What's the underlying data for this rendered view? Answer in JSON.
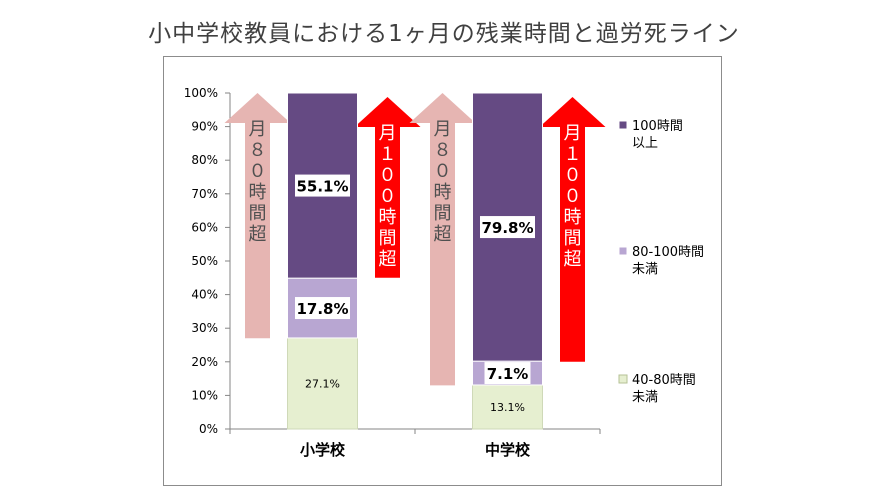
{
  "title": "小中学校教員における1ヶ月の残業時間と過労死ライン",
  "chart_data": {
    "type": "bar",
    "stacked": true,
    "categories": [
      "小学校",
      "中学校"
    ],
    "ylim": [
      0,
      100
    ],
    "yticks": [
      "0%",
      "10%",
      "20%",
      "30%",
      "40%",
      "50%",
      "60%",
      "70%",
      "80%",
      "90%",
      "100%"
    ],
    "grid": false,
    "legend_position": "right",
    "series": [
      {
        "name": "40-80時間未満",
        "name_lines": [
          "40-80時間",
          "未満"
        ],
        "values": [
          27.1,
          13.1
        ],
        "labels": [
          "27.1%",
          "13.1%"
        ],
        "color": "#e6efd0",
        "bold": false
      },
      {
        "name": "80-100時間未満",
        "name_lines": [
          "80-100時間",
          "未満"
        ],
        "values": [
          17.8,
          7.1
        ],
        "labels": [
          "17.8%",
          "7.1%"
        ],
        "color": "#b8a6d2",
        "bold": true
      },
      {
        "name": "100時間以上",
        "name_lines": [
          "100時間",
          "以上"
        ],
        "values": [
          55.1,
          79.8
        ],
        "labels": [
          "55.1%",
          "79.8%"
        ],
        "color": "#654a83",
        "bold": true
      }
    ],
    "annotations": [
      {
        "text": "月８０時間超",
        "category": 0,
        "from": 27,
        "color": "#e6b5b2",
        "text_color": "#505050",
        "side": "left"
      },
      {
        "text": "月１００時間超",
        "category": 0,
        "from": 45,
        "color": "#ff0000",
        "text_color": "#ffffff",
        "side": "right"
      },
      {
        "text": "月８０時間超",
        "category": 1,
        "from": 13,
        "color": "#e6b5b2",
        "text_color": "#505050",
        "side": "left"
      },
      {
        "text": "月１００時間超",
        "category": 1,
        "from": 20,
        "color": "#ff0000",
        "text_color": "#ffffff",
        "side": "right"
      }
    ]
  }
}
